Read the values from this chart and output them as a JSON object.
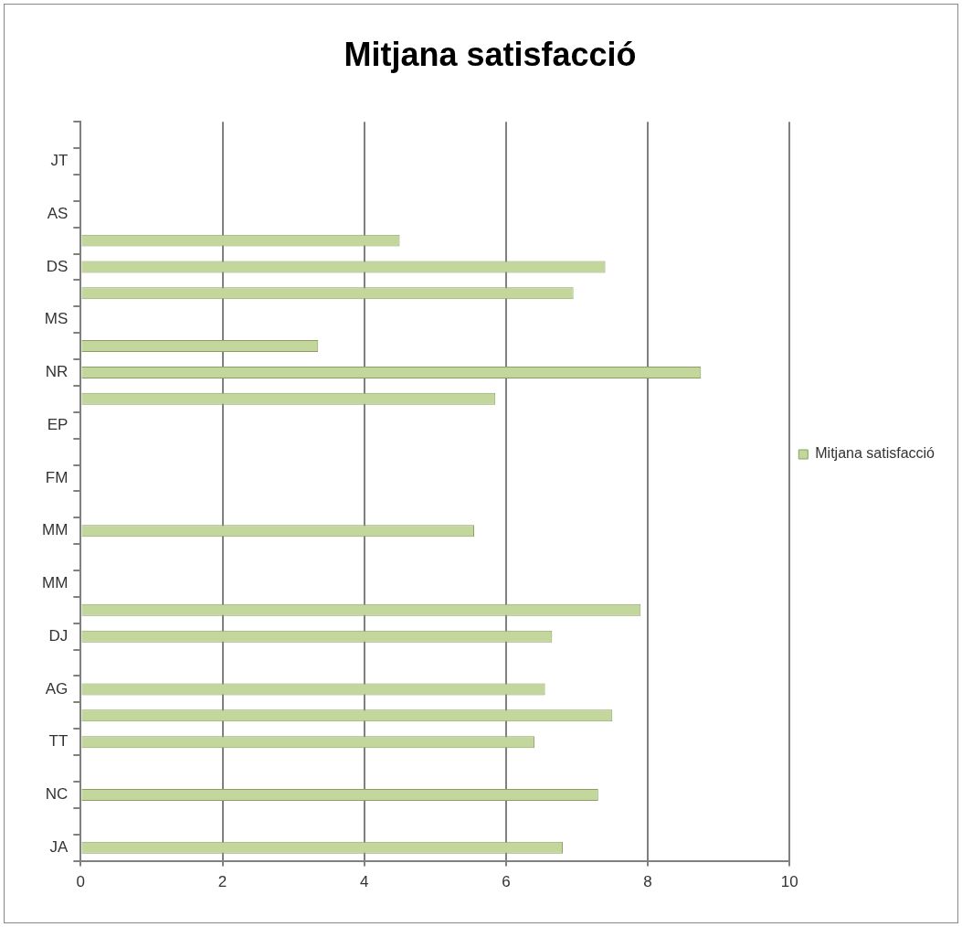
{
  "chart_data": {
    "type": "bar",
    "orientation": "horizontal",
    "title": "Mitjana satisfacció",
    "categories": [
      null,
      "JT",
      null,
      "AS",
      null,
      "DS",
      null,
      "MS",
      null,
      "NR",
      null,
      "EP",
      null,
      "FM",
      null,
      "MM",
      null,
      "MM",
      null,
      "DJ",
      null,
      "AG",
      null,
      "TT",
      null,
      "NC",
      null,
      "JA"
    ],
    "series": [
      {
        "name": "Mitjana satisfacció",
        "color": "#c3d69b",
        "values": [
          0,
          0,
          0,
          0,
          4.5,
          7.4,
          6.95,
          0,
          3.35,
          8.75,
          5.85,
          0,
          0,
          0,
          0,
          5.55,
          0,
          0,
          7.9,
          6.65,
          0,
          6.55,
          7.5,
          6.4,
          0,
          7.3,
          0,
          6.8
        ]
      }
    ],
    "xlim": [
      0,
      10
    ],
    "xticks": [
      0,
      2,
      4,
      6,
      8,
      10
    ],
    "grid": "x",
    "legend": "right"
  }
}
